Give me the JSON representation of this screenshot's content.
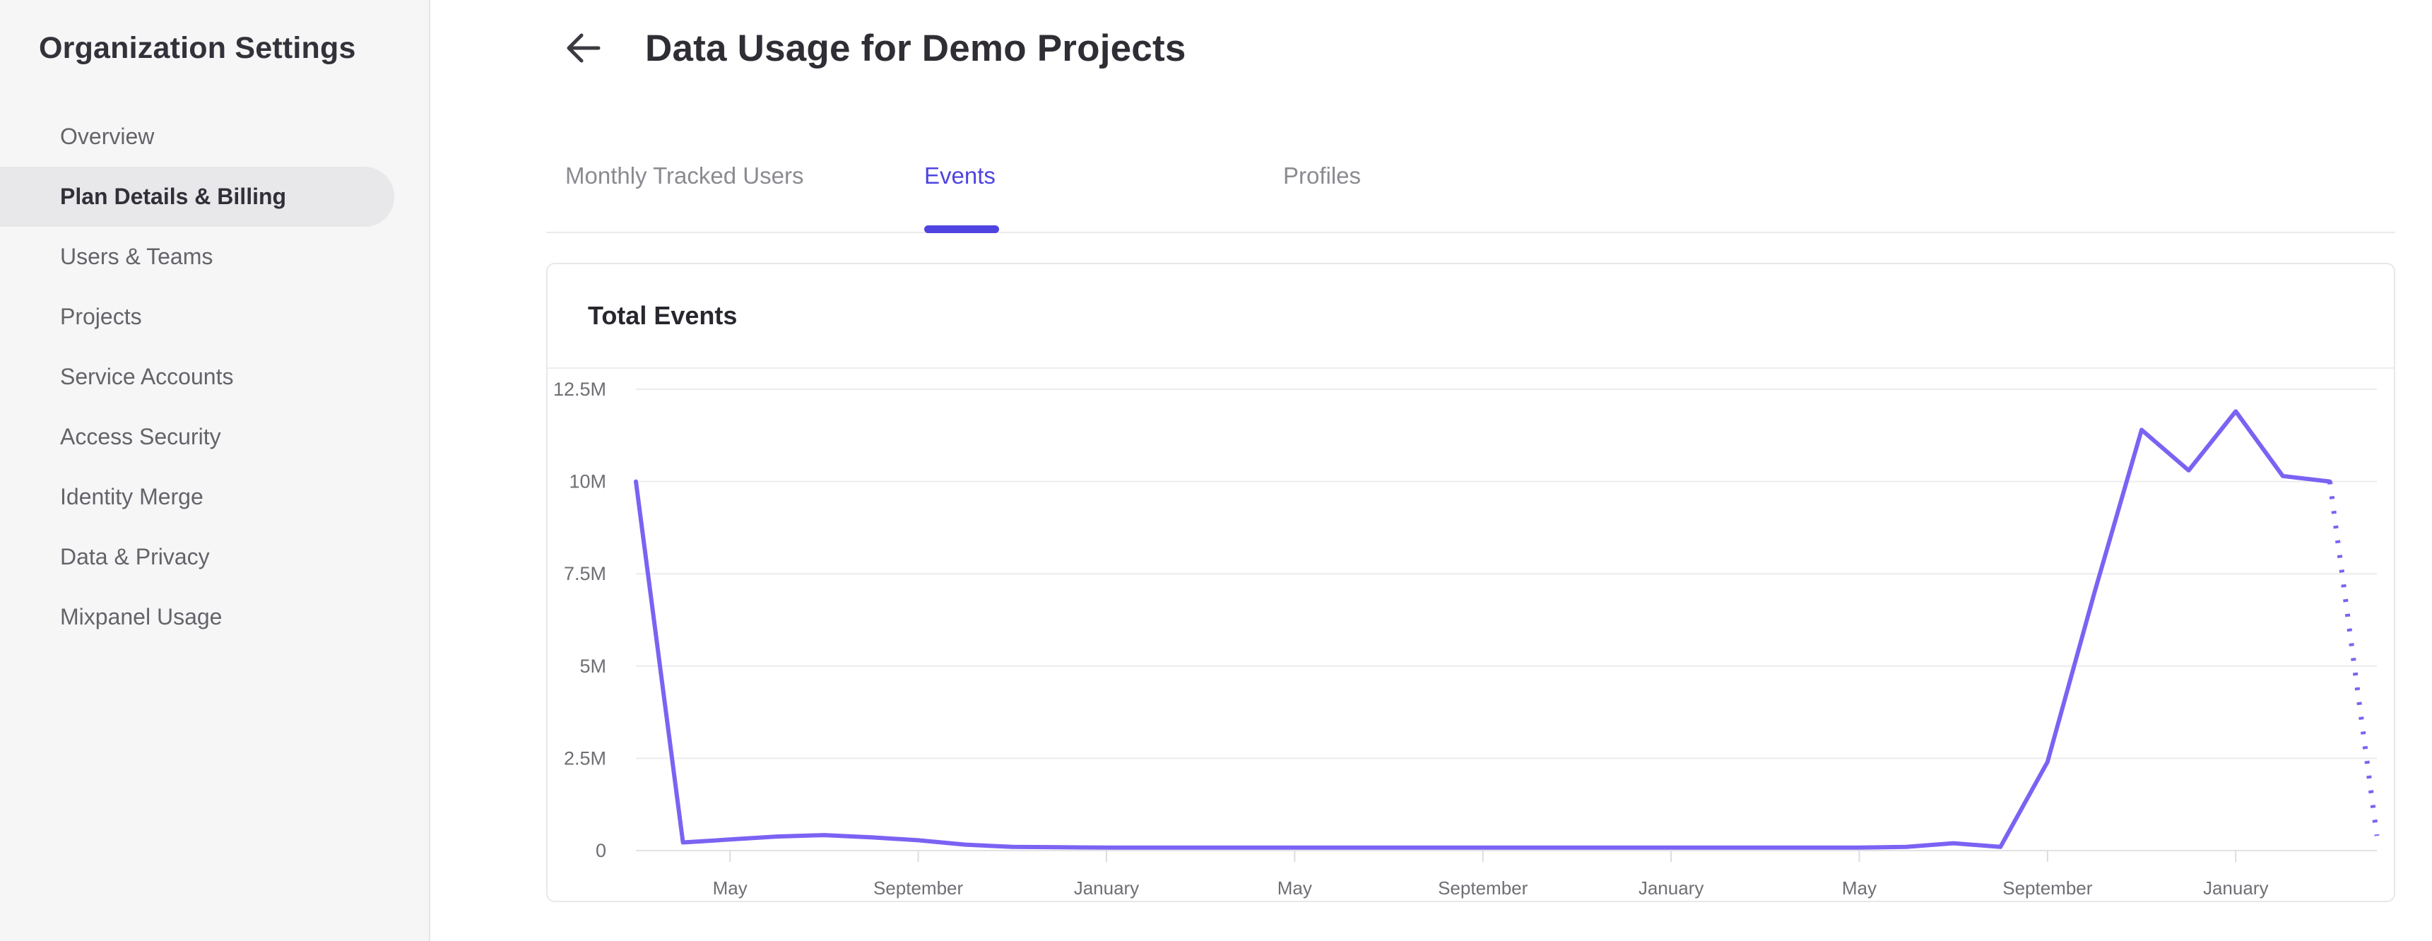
{
  "sidebar": {
    "title": "Organization Settings",
    "items": [
      {
        "label": "Overview",
        "active": false
      },
      {
        "label": "Plan Details & Billing",
        "active": true
      },
      {
        "label": "Users & Teams",
        "active": false
      },
      {
        "label": "Projects",
        "active": false
      },
      {
        "label": "Service Accounts",
        "active": false
      },
      {
        "label": "Access Security",
        "active": false
      },
      {
        "label": "Identity Merge",
        "active": false
      },
      {
        "label": "Data & Privacy",
        "active": false
      },
      {
        "label": "Mixpanel Usage",
        "active": false
      }
    ]
  },
  "header": {
    "title": "Data Usage for Demo Projects"
  },
  "tabs": [
    {
      "label": "Monthly Tracked Users",
      "active": false
    },
    {
      "label": "Events",
      "active": true
    },
    {
      "label": "Profiles",
      "active": false
    }
  ],
  "card": {
    "title": "Total Events"
  },
  "colors": {
    "accent": "#4f44e0",
    "chart_line": "#7c62f3",
    "gridline": "#ececee",
    "axis_line": "#e2e2e4",
    "axis_text": "#6f6e74",
    "sidebar_bg": "#f6f6f7",
    "active_pill": "#e8e8ea"
  },
  "chart_data": {
    "type": "line",
    "title": "Total Events",
    "series": [
      {
        "name": "Total Events",
        "values_millions": [
          10,
          0.22,
          0.3,
          0.38,
          0.42,
          0.36,
          0.28,
          0.16,
          0.1,
          0.09,
          0.08,
          0.08,
          0.08,
          0.08,
          0.08,
          0.08,
          0.08,
          0.08,
          0.08,
          0.08,
          0.08,
          0.08,
          0.08,
          0.08,
          0.08,
          0.08,
          0.08,
          0.1,
          0.2,
          0.1,
          2.4,
          7.0,
          11.4,
          10.3,
          11.9,
          10.15,
          10.0,
          0.4
        ]
      }
    ],
    "dotted_from_index": 36,
    "x_tick_indices": [
      2,
      6,
      10,
      14,
      18,
      22,
      26,
      30,
      34
    ],
    "x_tick_labels": [
      "May",
      "September",
      "January",
      "May",
      "September",
      "January",
      "May",
      "September",
      "January"
    ],
    "y_tick_values_millions": [
      0,
      2.5,
      5,
      7.5,
      10,
      12.5
    ],
    "y_tick_labels": [
      "0",
      "2.5M",
      "5M",
      "7.5M",
      "10M",
      "12.5M"
    ],
    "ylim_millions": [
      0,
      12.5
    ],
    "grid": "horizontal-only",
    "legend": "none",
    "xlabel": "",
    "ylabel": ""
  }
}
